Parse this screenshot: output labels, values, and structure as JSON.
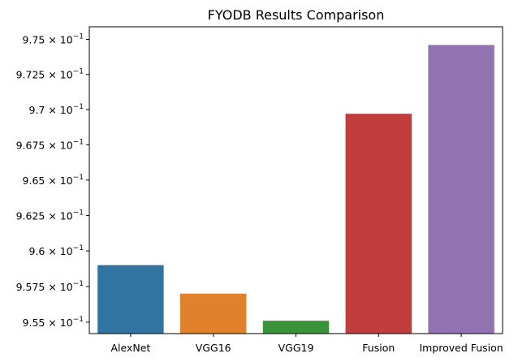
{
  "chart_data": {
    "type": "bar",
    "title": "FYODB Results Comparison",
    "xlabel": "",
    "ylabel": "",
    "categories": [
      "AlexNet",
      "VGG16",
      "VGG19",
      "Fusion",
      "Improved Fusion"
    ],
    "values": [
      0.959,
      0.957,
      0.9551,
      0.9697,
      0.9746
    ],
    "colors": [
      "#3274a1",
      "#e1812c",
      "#3a923a",
      "#c03d3e",
      "#9372b2"
    ],
    "ylim": [
      0.9542,
      0.9759
    ],
    "yscale": "log",
    "yticks": [
      {
        "mant": "9.55",
        "value": 0.955
      },
      {
        "mant": "9.575",
        "value": 0.9575
      },
      {
        "mant": "9.6",
        "value": 0.96
      },
      {
        "mant": "9.625",
        "value": 0.9625
      },
      {
        "mant": "9.65",
        "value": 0.965
      },
      {
        "mant": "9.675",
        "value": 0.9675
      },
      {
        "mant": "9.7",
        "value": 0.97
      },
      {
        "mant": "9.725",
        "value": 0.9725
      },
      {
        "mant": "9.75",
        "value": 0.975
      }
    ],
    "ytick_suffix": "× 10",
    "ytick_exponent": "−1",
    "grid": false,
    "legend": "none"
  }
}
